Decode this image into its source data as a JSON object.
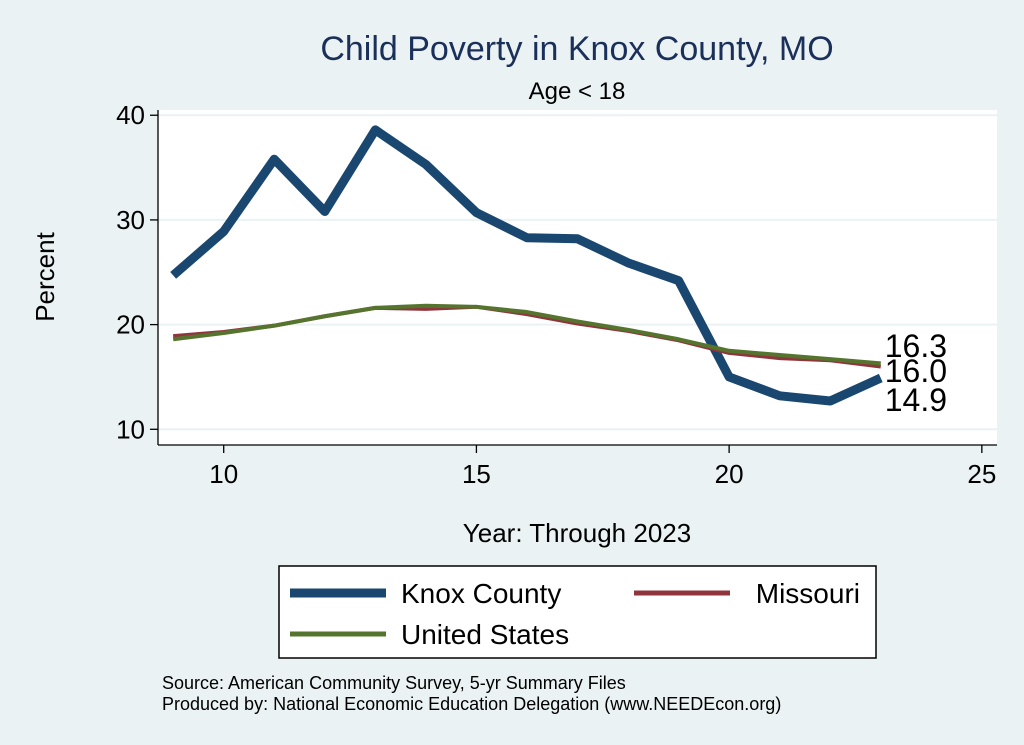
{
  "chart_data": {
    "type": "line",
    "title": "Child Poverty in Knox County, MO",
    "subtitle": "Age < 18",
    "xlabel": "Year: Through 2023",
    "ylabel": "Percent",
    "xlim": [
      8.7,
      25.3
    ],
    "ylim": [
      8.5,
      40.5
    ],
    "xticks": [
      10,
      15,
      20,
      25
    ],
    "yticks": [
      10,
      20,
      30,
      40
    ],
    "xtick_labels": [
      "10",
      "15",
      "20",
      "25"
    ],
    "ytick_labels": [
      "10",
      "20",
      "30",
      "40"
    ],
    "grid": true,
    "legend_position": "bottom",
    "x": [
      9,
      10,
      11,
      12,
      13,
      14,
      15,
      16,
      17,
      18,
      19,
      20,
      21,
      22,
      23
    ],
    "series": [
      {
        "name": "Knox County",
        "color": "#1a476f",
        "values": [
          24.7,
          28.9,
          35.8,
          30.8,
          38.6,
          35.3,
          30.7,
          28.3,
          28.2,
          25.9,
          24.2,
          15.0,
          13.2,
          12.7,
          14.9
        ]
      },
      {
        "name": "Missouri",
        "color": "#90353b",
        "values": [
          18.9,
          19.3,
          19.9,
          20.8,
          21.6,
          21.5,
          21.7,
          21.0,
          20.1,
          19.4,
          18.5,
          17.3,
          16.8,
          16.6,
          16.0
        ]
      },
      {
        "name": "United States",
        "color": "#55752f",
        "values": [
          18.6,
          19.2,
          19.9,
          20.8,
          21.6,
          21.8,
          21.7,
          21.2,
          20.3,
          19.5,
          18.6,
          17.5,
          17.1,
          16.7,
          16.3
        ]
      }
    ],
    "end_labels": [
      "16.3",
      "16.0",
      "14.9"
    ]
  },
  "notes": {
    "source": "Source: American Community Survey, 5-yr Summary Files",
    "produced_by": "Produced by: National Economic Education Delegation (www.NEEDEcon.org)"
  }
}
